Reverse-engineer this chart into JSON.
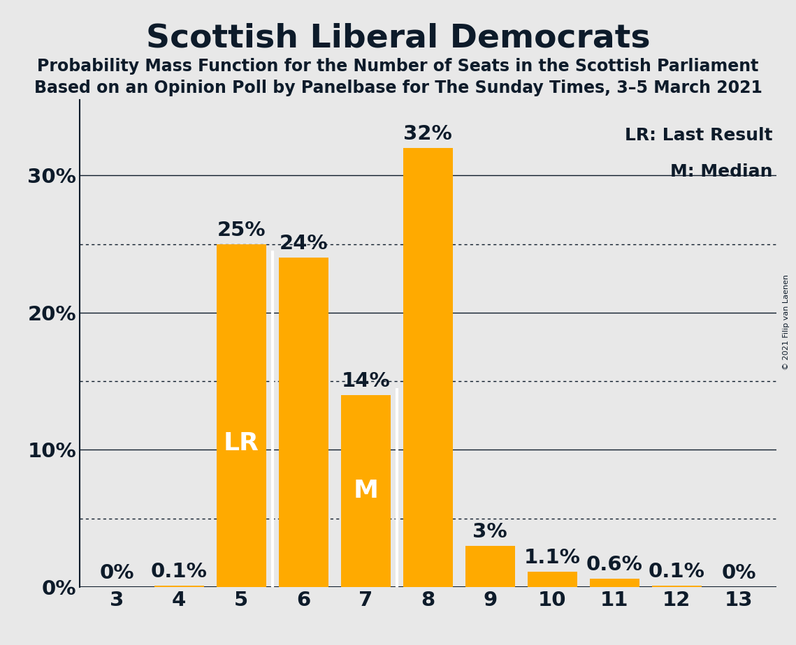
{
  "categories": [
    3,
    4,
    5,
    6,
    7,
    8,
    9,
    10,
    11,
    12,
    13
  ],
  "values": [
    0.0,
    0.1,
    25.0,
    24.0,
    14.0,
    32.0,
    3.0,
    1.1,
    0.6,
    0.1,
    0.0
  ],
  "background_color": "#E8E8E8",
  "title": "Scottish Liberal Democrats",
  "subtitle1": "Probability Mass Function for the Number of Seats in the Scottish Parliament",
  "subtitle2": "Based on an Opinion Poll by Panelbase for The Sunday Times, 3–5 March 2021",
  "copyright": "© 2021 Filip van Laenen",
  "ylabel_ticks": [
    0,
    10,
    20,
    30
  ],
  "ytick_labels": [
    "0%",
    "10%",
    "20%",
    "30%"
  ],
  "dotted_lines": [
    5,
    15,
    25
  ],
  "lr_bar": 5,
  "median_bar": 7,
  "lr_label": "LR",
  "median_label": "M",
  "legend_lr": "LR: Last Result",
  "legend_m": "M: Median",
  "value_labels": [
    "0%",
    "0.1%",
    "25%",
    "24%",
    "14%",
    "32%",
    "3%",
    "1.1%",
    "0.6%",
    "0.1%",
    "0%"
  ],
  "title_fontsize": 34,
  "subtitle_fontsize": 17,
  "tick_fontsize": 21,
  "bar_label_fontsize": 21,
  "inside_label_fontsize": 26,
  "legend_fontsize": 18,
  "ylim": [
    0,
    35.5
  ],
  "bar_orange": "#FFAA00",
  "dark_color": "#0D1B2A",
  "group1": [
    5,
    6
  ],
  "group2": [
    7,
    8
  ]
}
